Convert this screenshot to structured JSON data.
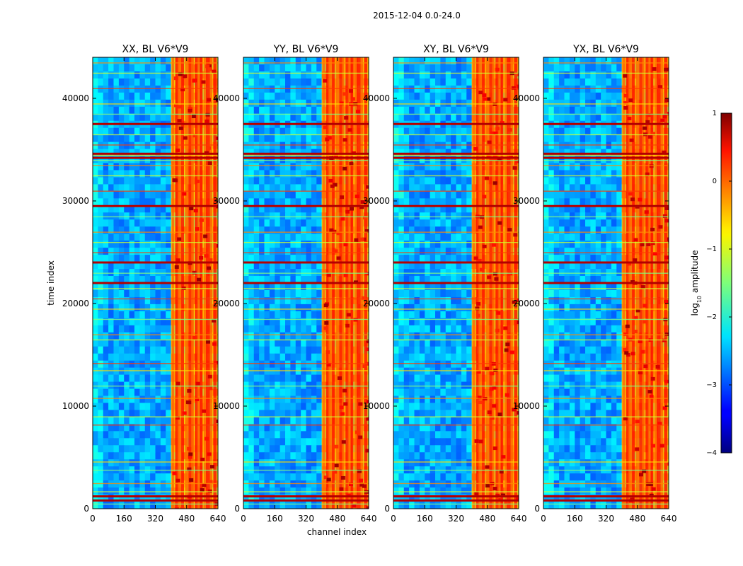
{
  "figure_title": "2015-12-04 0.0-24.0",
  "chart_data": {
    "type": "heatmap",
    "suptitle": "2015-12-04 0.0-24.0",
    "xlabel": "channel index",
    "ylabel": "time index",
    "xlim": [
      0,
      640
    ],
    "ylim": [
      0,
      44000
    ],
    "xticks": [
      0,
      160,
      320,
      480,
      640
    ],
    "yticks": [
      0,
      10000,
      20000,
      30000,
      40000
    ],
    "panels": [
      {
        "title": "XX, BL V6*V9",
        "pol": "XX"
      },
      {
        "title": "YY, BL V6*V9",
        "pol": "YY"
      },
      {
        "title": "XY, BL V6*V9",
        "pol": "XY"
      },
      {
        "title": "YX, BL V6*V9",
        "pol": "YX"
      }
    ],
    "colorbar": {
      "label_prefix": "log",
      "label_subscript": "10",
      "label_suffix": " amplitude",
      "range": [
        -4,
        1
      ],
      "ticks": [
        1,
        0,
        -1,
        -2,
        -3,
        -4
      ],
      "colormap": "jet"
    },
    "bright_channel_band": [
      405,
      640
    ],
    "bright_channels": [
      410,
      430,
      445,
      460,
      480,
      500,
      510,
      530,
      545,
      555,
      575,
      590,
      605,
      625
    ],
    "time_flag_rows": [
      500,
      900,
      1300,
      1700,
      2500,
      3800,
      4600,
      8200,
      9000,
      10800,
      12000,
      13500,
      14200,
      16500,
      17000,
      18500,
      19500,
      20500,
      21500,
      22000,
      23000,
      24000,
      25000,
      26000,
      27000,
      28500,
      29500,
      31000,
      32500,
      33500,
      34000,
      34500,
      35500,
      36500,
      37500,
      38500,
      39500,
      41000,
      42500,
      43500
    ],
    "strong_time_rows": [
      800,
      1200,
      29500,
      34200,
      34600,
      37500,
      22000,
      24000
    ]
  }
}
